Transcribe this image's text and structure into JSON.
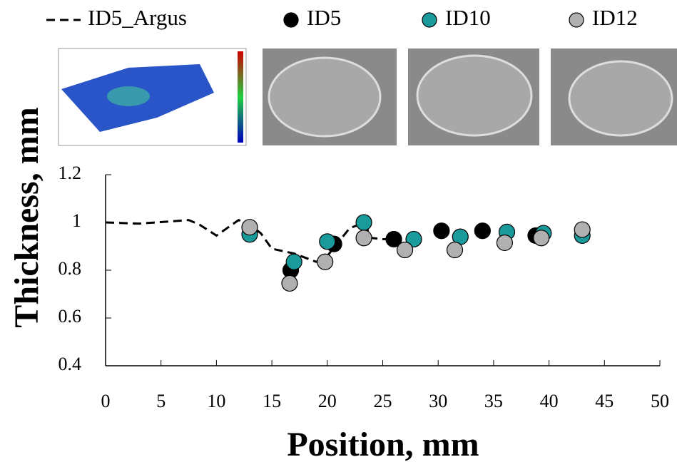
{
  "chart_data": {
    "type": "scatter",
    "x_label": "Position, mm",
    "y_label": "Thickness, mm",
    "xlim": [
      0,
      50
    ],
    "xticks": [
      0,
      5,
      10,
      15,
      20,
      25,
      30,
      35,
      40,
      45,
      50
    ],
    "ylim": [
      0.4,
      1.2
    ],
    "yticks": [
      0.4,
      0.6,
      0.8,
      1,
      1.2
    ],
    "series": [
      {
        "name": "ID5_Argus",
        "color": "#000000",
        "marker": "dashed-line",
        "x": [
          0,
          3,
          7.5,
          8.5,
          10,
          12,
          13,
          14,
          15,
          17,
          19,
          20,
          22,
          23.3,
          24,
          25,
          26
        ],
        "values": [
          1.0,
          0.995,
          1.01,
          0.99,
          0.945,
          1.01,
          0.99,
          0.955,
          0.89,
          0.87,
          0.835,
          0.86,
          0.975,
          1.0,
          0.935,
          0.93,
          0.93
        ]
      },
      {
        "name": "ID5",
        "color": "#000000",
        "marker": "circle",
        "x": [
          16.7,
          20.6,
          26,
          30.3,
          34,
          38.8
        ],
        "values": [
          0.8,
          0.91,
          0.93,
          0.965,
          0.965,
          0.945
        ]
      },
      {
        "name": "ID10",
        "color": "#1a9a9a",
        "marker": "circle",
        "x": [
          13,
          17,
          20,
          23.3,
          27.8,
          32,
          36.2,
          39.5,
          43
        ],
        "values": [
          0.95,
          0.835,
          0.92,
          1.0,
          0.93,
          0.94,
          0.96,
          0.955,
          0.945
        ]
      },
      {
        "name": "ID12",
        "color": "#b0b0b0",
        "marker": "circle",
        "x": [
          13,
          16.6,
          19.8,
          23.3,
          27,
          31.5,
          36,
          39.3,
          43
        ],
        "values": [
          0.98,
          0.745,
          0.835,
          0.935,
          0.885,
          0.885,
          0.915,
          0.935,
          0.97
        ]
      }
    ]
  }
}
